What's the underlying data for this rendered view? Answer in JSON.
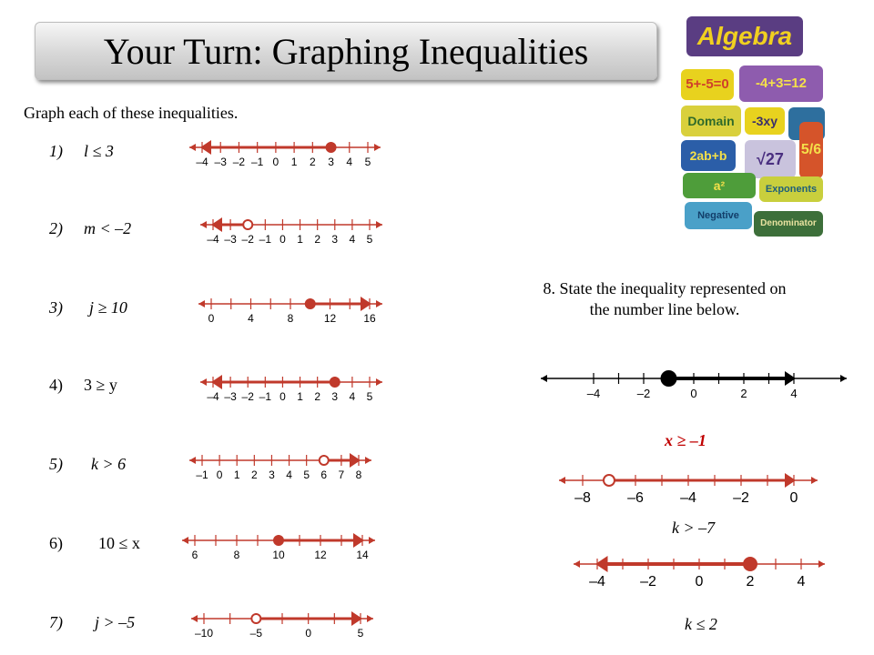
{
  "title": "Your Turn: Graphing Inequalities",
  "instruction": "Graph each of these inequalities.",
  "problems": [
    {
      "num": "1)",
      "text": "l ≤ 3",
      "italic": true
    },
    {
      "num": "2)",
      "text": "m < –2",
      "italic": true
    },
    {
      "num": "3)",
      "text": "j ≥ 10",
      "italic": true
    },
    {
      "num": "4)",
      "text": "3 ≥ y",
      "italic": false
    },
    {
      "num": "5)",
      "text": "k > 6",
      "italic": true
    },
    {
      "num": "6)",
      "text": "10 ≤ x",
      "italic": false
    },
    {
      "num": "7)",
      "text": "j > –5",
      "italic": true
    }
  ],
  "number_lines": [
    {
      "labels": [
        "–4",
        "–3",
        "–2",
        "–1",
        "0",
        "1",
        "2",
        "3",
        "4",
        "5"
      ],
      "min": -4,
      "max": 5,
      "tick_step": 1,
      "point": 3,
      "closed": true,
      "direction": "left"
    },
    {
      "labels": [
        "–4",
        "–3",
        "–2",
        "–1",
        "0",
        "1",
        "2",
        "3",
        "4",
        "5"
      ],
      "min": -4,
      "max": 5,
      "tick_step": 1,
      "point": -2,
      "closed": false,
      "direction": "left"
    },
    {
      "labels": [
        "0",
        "4",
        "8",
        "12",
        "16"
      ],
      "min": 0,
      "max": 16,
      "tick_step": 2,
      "point": 10,
      "closed": true,
      "direction": "right"
    },
    {
      "labels": [
        "–4",
        "–3",
        "–2",
        "–1",
        "0",
        "1",
        "2",
        "3",
        "4",
        "5"
      ],
      "min": -4,
      "max": 5,
      "tick_step": 1,
      "point": 3,
      "closed": true,
      "direction": "left"
    },
    {
      "labels": [
        "–1",
        "0",
        "1",
        "2",
        "3",
        "4",
        "5",
        "6",
        "7",
        "8"
      ],
      "min": -1,
      "max": 8,
      "tick_step": 1,
      "point": 6,
      "closed": false,
      "direction": "right"
    },
    {
      "labels": [
        "6",
        "8",
        "10",
        "12",
        "14"
      ],
      "min": 6,
      "max": 14,
      "tick_step": 1,
      "point": 10,
      "closed": true,
      "direction": "right"
    },
    {
      "labels": [
        "–10",
        "–5",
        "0",
        "5"
      ],
      "min": -10,
      "max": 5,
      "tick_step": 2.5,
      "point": -5,
      "closed": false,
      "direction": "right"
    }
  ],
  "question8": {
    "line1": "8. State the inequality represented on",
    "line2": "the number line below.",
    "number_line": {
      "labels": [
        "–4",
        "–2",
        "0",
        "2",
        "4"
      ],
      "min": -4,
      "max": 4,
      "tick_step": 1,
      "point": -1,
      "closed": true,
      "direction": "right",
      "color": "#000000"
    },
    "answer": "x ≥ –1"
  },
  "extra_lines": [
    {
      "labels": [
        "–8",
        "–6",
        "–4",
        "–2",
        "0"
      ],
      "min": -8,
      "max": 0,
      "tick_step": 1,
      "point": -7,
      "closed": false,
      "direction": "right",
      "answer": "k > –7"
    },
    {
      "labels": [
        "–4",
        "–2",
        "0",
        "2",
        "4"
      ],
      "min": -4,
      "max": 4,
      "tick_step": 1,
      "point": 2,
      "closed": true,
      "direction": "left",
      "answer": "k ≤ 2"
    }
  ],
  "collage_words": [
    "Algebra",
    "5+-5=0",
    "-4+3=12",
    "Domain",
    "-3xy",
    "2ab+b",
    "√27",
    "5/6",
    "a²",
    "Exponents",
    "Negative",
    "Denominator"
  ],
  "colors": {
    "graph": "#c0392b",
    "answer": "#c00000",
    "q8_line": "#000000"
  }
}
